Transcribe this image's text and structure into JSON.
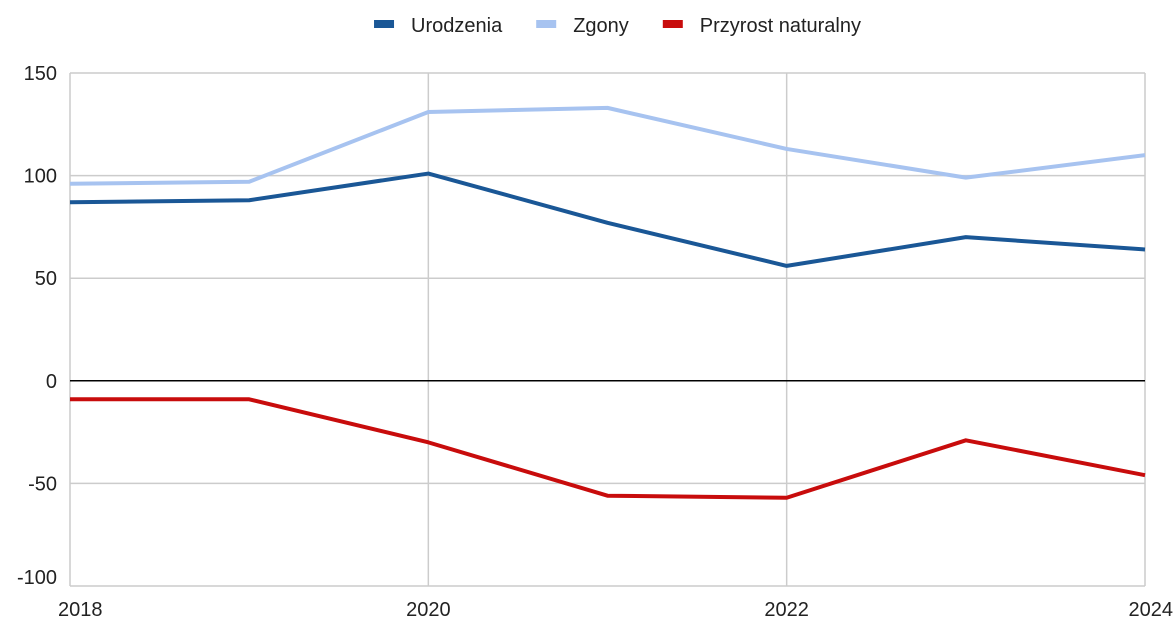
{
  "chart_data": {
    "type": "line",
    "x": [
      2018,
      2019,
      2020,
      2021,
      2022,
      2023,
      2024
    ],
    "series": [
      {
        "name": "Urodzenia",
        "color": "#1a5796",
        "values": [
          87,
          88,
          101,
          77,
          56,
          70,
          64
        ]
      },
      {
        "name": "Zgony",
        "color": "#a7c3f0",
        "values": [
          96,
          97,
          131,
          133,
          113,
          99,
          110
        ]
      },
      {
        "name": "Przyrost naturalny",
        "color": "#c80c0c",
        "values": [
          -9,
          -9,
          -30,
          -56,
          -57,
          -29,
          -46
        ]
      }
    ],
    "xlim": [
      2018,
      2024
    ],
    "xticks": [
      2018,
      2020,
      2022,
      2024
    ],
    "ylim": [
      -100,
      150
    ],
    "yticks": [
      -100,
      -50,
      0,
      50,
      100,
      150
    ],
    "grid": true,
    "legend": "top"
  }
}
